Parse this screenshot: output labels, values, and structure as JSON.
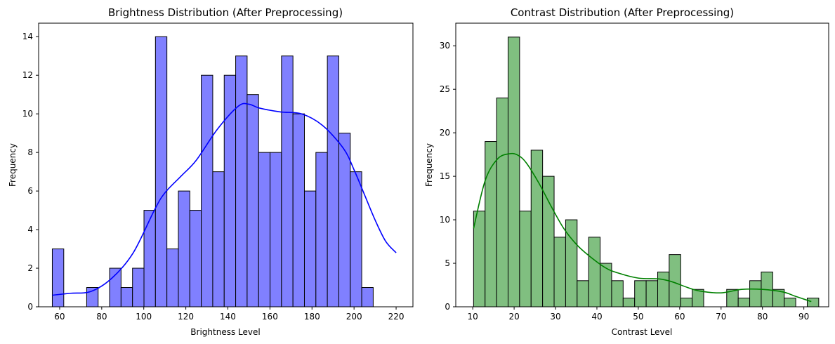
{
  "chart_data": [
    {
      "type": "bar",
      "title": "Brightness Distribution (After Preprocessing)",
      "xlabel": "Brightness Level",
      "ylabel": "Frequency",
      "xlim": [
        50,
        228
      ],
      "ylim": [
        0,
        14.7
      ],
      "xticks": [
        60,
        80,
        100,
        120,
        140,
        160,
        180,
        200,
        220
      ],
      "yticks": [
        0,
        2,
        4,
        6,
        8,
        10,
        12,
        14
      ],
      "bar_color": "#8080ff",
      "curve_color": "#0000ff",
      "bins": {
        "start": 56.5,
        "width": 5.45,
        "counts": [
          3,
          0,
          0,
          1,
          0,
          2,
          1,
          2,
          5,
          14,
          3,
          6,
          5,
          12,
          7,
          12,
          13,
          11,
          8,
          8,
          13,
          10,
          6,
          8,
          13,
          9,
          7,
          1
        ]
      },
      "kde": {
        "x": [
          56.5,
          65,
          75,
          85,
          95,
          105,
          110,
          118,
          125,
          135,
          145,
          150,
          155,
          165,
          175,
          185,
          195,
          200,
          205,
          210,
          215,
          220
        ],
        "y": [
          0.6,
          0.7,
          0.8,
          1.5,
          2.8,
          5.0,
          5.9,
          6.8,
          7.6,
          9.2,
          10.4,
          10.5,
          10.3,
          10.1,
          10.0,
          9.4,
          8.2,
          7.1,
          5.8,
          4.5,
          3.4,
          2.8
        ]
      }
    },
    {
      "type": "bar",
      "title": "Contrast Distribution (After Preprocessing)",
      "xlabel": "Contrast Level",
      "ylabel": "Frequency",
      "xlim": [
        5.9,
        96.0
      ],
      "ylim": [
        0,
        32.6
      ],
      "xticks": [
        10,
        20,
        30,
        40,
        50,
        60,
        70,
        80,
        90
      ],
      "yticks": [
        0,
        5,
        10,
        15,
        20,
        25,
        30
      ],
      "bar_color": "#80bf80",
      "curve_color": "#008000",
      "bins": {
        "start": 10.2,
        "width": 2.78,
        "counts": [
          11,
          19,
          24,
          31,
          11,
          18,
          15,
          8,
          10,
          3,
          8,
          5,
          3,
          1,
          3,
          3,
          4,
          6,
          1,
          2,
          0,
          0,
          2,
          1,
          3,
          4,
          2,
          1,
          0,
          1
        ]
      },
      "kde": {
        "x": [
          10.2,
          13,
          16,
          19,
          21,
          23,
          26,
          29,
          32,
          35,
          38,
          42,
          45,
          50,
          55,
          58,
          62,
          65,
          70,
          75,
          80,
          85,
          88,
          91.8
        ],
        "y": [
          9.0,
          14.5,
          17.0,
          17.6,
          17.4,
          16.5,
          14.2,
          11.5,
          9.0,
          7.2,
          5.9,
          4.5,
          3.9,
          3.3,
          3.2,
          2.9,
          2.2,
          1.8,
          1.6,
          2.0,
          2.0,
          1.7,
          1.2,
          0.6
        ]
      }
    }
  ]
}
